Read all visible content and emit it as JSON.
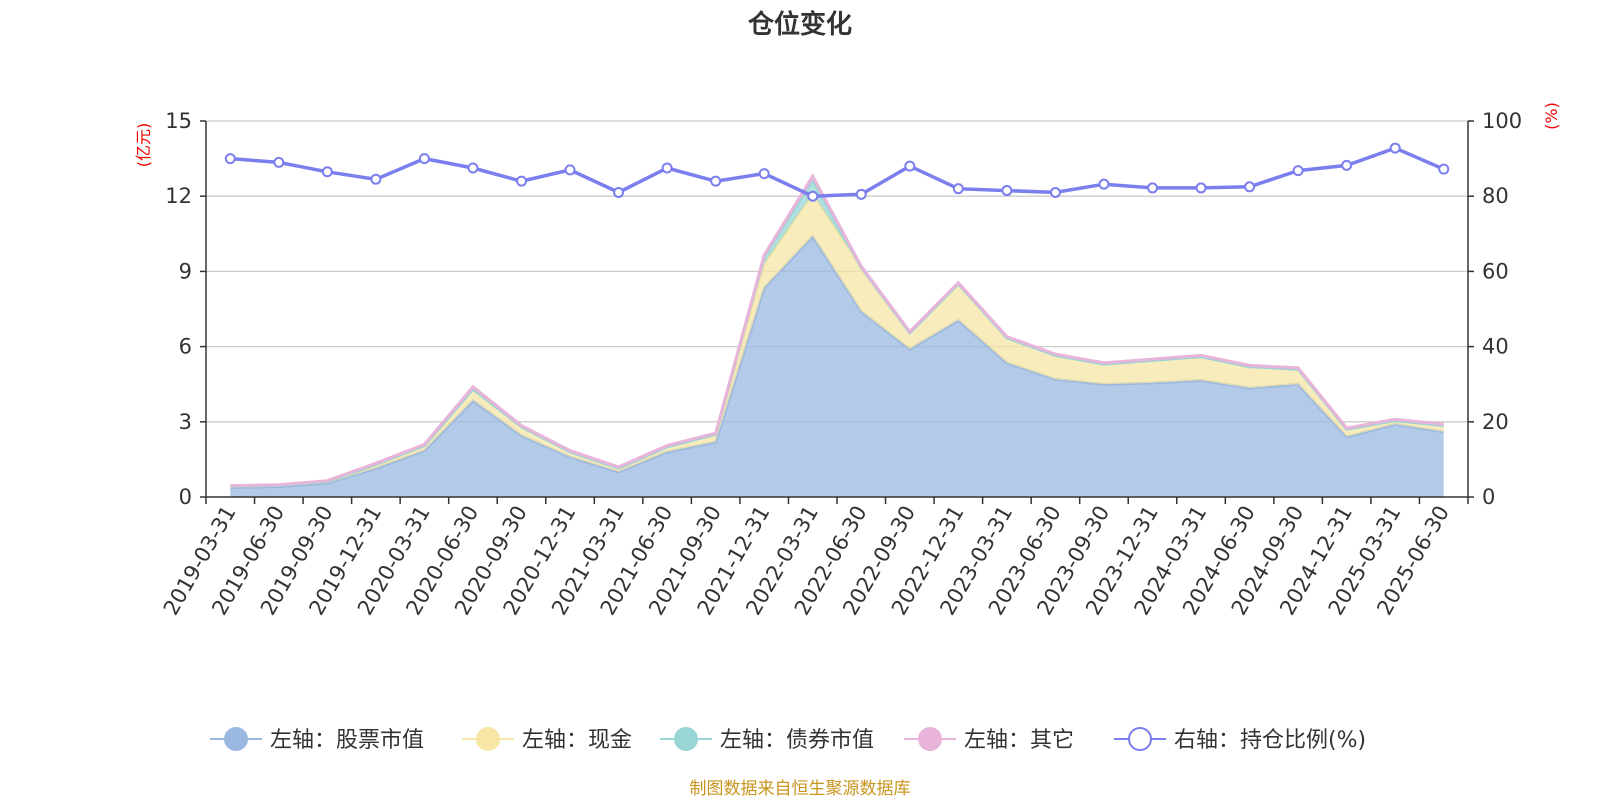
{
  "chart_data": {
    "type": "area",
    "title": "仓位变化",
    "left_axis_unit": "(亿元)",
    "right_axis_unit": "(%)",
    "left_ylim": [
      0,
      15
    ],
    "left_ticks": [
      0,
      3,
      6,
      9,
      12,
      15
    ],
    "right_ylim": [
      0,
      100
    ],
    "right_ticks": [
      0,
      20,
      40,
      60,
      80,
      100
    ],
    "grid": true,
    "legend_position": "bottom",
    "categories": [
      "2019-03-31",
      "2019-06-30",
      "2019-09-30",
      "2019-12-31",
      "2020-03-31",
      "2020-06-30",
      "2020-09-30",
      "2020-12-31",
      "2021-03-31",
      "2021-06-30",
      "2021-09-30",
      "2021-12-31",
      "2022-03-31",
      "2022-06-30",
      "2022-09-30",
      "2022-12-31",
      "2023-03-31",
      "2023-06-30",
      "2023-09-30",
      "2023-12-31",
      "2024-03-31",
      "2024-06-30",
      "2024-09-30",
      "2024-12-31",
      "2025-03-31",
      "2025-06-30"
    ],
    "stacked_series": [
      {
        "name": "左轴：股票市值",
        "axis": "left",
        "color": "#9ab8e0",
        "values": [
          0.38,
          0.42,
          0.55,
          1.15,
          1.85,
          3.85,
          2.45,
          1.6,
          1.0,
          1.8,
          2.2,
          8.35,
          10.4,
          7.4,
          5.9,
          7.05,
          5.35,
          4.7,
          4.5,
          4.55,
          4.65,
          4.35,
          4.5,
          2.4,
          2.9,
          2.6
        ]
      },
      {
        "name": "左轴：现金",
        "axis": "left",
        "color": "#f7e6a6",
        "values": [
          0.05,
          0.05,
          0.07,
          0.15,
          0.2,
          0.45,
          0.35,
          0.2,
          0.15,
          0.2,
          0.3,
          0.95,
          1.7,
          1.75,
          0.65,
          1.45,
          1.0,
          0.95,
          0.8,
          0.9,
          0.95,
          0.85,
          0.6,
          0.3,
          0.15,
          0.25
        ]
      },
      {
        "name": "左轴：债券市值",
        "axis": "left",
        "color": "#9ad5d5",
        "values": [
          0,
          0,
          0,
          0,
          0,
          0,
          0,
          0,
          0,
          0,
          0,
          0.3,
          0.55,
          0,
          0,
          0,
          0,
          0,
          0,
          0,
          0,
          0,
          0,
          0,
          0,
          0
        ]
      },
      {
        "name": "左轴：其它",
        "axis": "left",
        "color": "#e8b4da",
        "values": [
          0.02,
          0.02,
          0.03,
          0.05,
          0.05,
          0.1,
          0.05,
          0.05,
          0.05,
          0.05,
          0.05,
          0.05,
          0.15,
          0.05,
          0.05,
          0.05,
          0.05,
          0.05,
          0.05,
          0.05,
          0.05,
          0.05,
          0.05,
          0.05,
          0.05,
          0.05
        ]
      }
    ],
    "line_series": {
      "name": "右轴：持仓比例(%)",
      "axis": "right",
      "color": "#7b7fee",
      "values": [
        90.0,
        89.0,
        86.5,
        84.5,
        90.0,
        87.5,
        84.0,
        87.0,
        81.0,
        87.5,
        84.0,
        86.0,
        80.0,
        80.5,
        88.0,
        82.0,
        81.5,
        81.0,
        83.2,
        82.2,
        82.2,
        82.5,
        86.8,
        88.2,
        92.8,
        87.2
      ]
    },
    "source": "制图数据来自恒生聚源数据库"
  }
}
